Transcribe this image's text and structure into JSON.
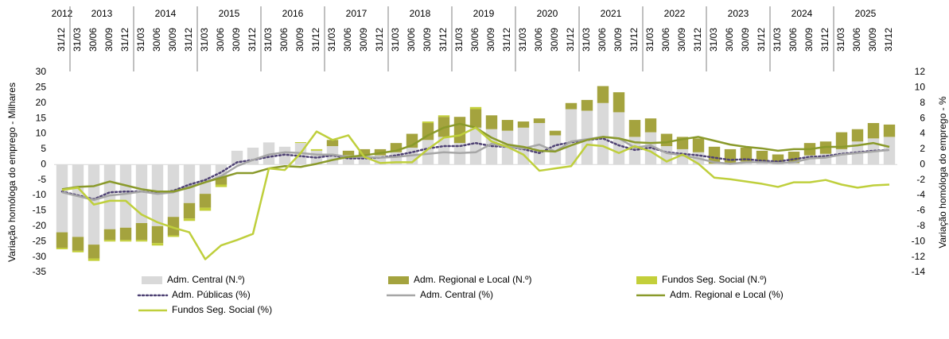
{
  "chart_data": {
    "type": "combo",
    "y_label": "Variação homóloga do emprego - Milhares",
    "y2_label": "Variação homóloga do emprego - %",
    "categories": [
      {
        "year": "2012",
        "label": "31/12"
      },
      {
        "year": "2013",
        "label": "31/03"
      },
      {
        "year": "2013",
        "label": "30/06"
      },
      {
        "year": "2013",
        "label": "30/09"
      },
      {
        "year": "2013",
        "label": "31/12"
      },
      {
        "year": "2014",
        "label": "31/03"
      },
      {
        "year": "2014",
        "label": "30/06"
      },
      {
        "year": "2014",
        "label": "30/09"
      },
      {
        "year": "2014",
        "label": "31/12"
      },
      {
        "year": "2015",
        "label": "31/03"
      },
      {
        "year": "2015",
        "label": "30/06"
      },
      {
        "year": "2015",
        "label": "30/09"
      },
      {
        "year": "2015",
        "label": "31/12"
      },
      {
        "year": "2016",
        "label": "31/03"
      },
      {
        "year": "2016",
        "label": "30/06"
      },
      {
        "year": "2016",
        "label": "30/09"
      },
      {
        "year": "2016",
        "label": "31/12"
      },
      {
        "year": "2017",
        "label": "31/03"
      },
      {
        "year": "2017",
        "label": "30/06"
      },
      {
        "year": "2017",
        "label": "30/09"
      },
      {
        "year": "2017",
        "label": "31/12"
      },
      {
        "year": "2018",
        "label": "31/03"
      },
      {
        "year": "2018",
        "label": "30/06"
      },
      {
        "year": "2018",
        "label": "30/09"
      },
      {
        "year": "2018",
        "label": "31/12"
      },
      {
        "year": "2019",
        "label": "31/03"
      },
      {
        "year": "2019",
        "label": "30/06"
      },
      {
        "year": "2019",
        "label": "30/09"
      },
      {
        "year": "2019",
        "label": "31/12"
      },
      {
        "year": "2020",
        "label": "31/03"
      },
      {
        "year": "2020",
        "label": "30/06"
      },
      {
        "year": "2020",
        "label": "30/09"
      },
      {
        "year": "2020",
        "label": "31/12"
      },
      {
        "year": "2021",
        "label": "31/03"
      },
      {
        "year": "2021",
        "label": "30/06"
      },
      {
        "year": "2021",
        "label": "30/09"
      },
      {
        "year": "2021",
        "label": "31/12"
      },
      {
        "year": "2022",
        "label": "31/03"
      },
      {
        "year": "2022",
        "label": "30/06"
      },
      {
        "year": "2022",
        "label": "30/09"
      },
      {
        "year": "2022",
        "label": "31/12"
      },
      {
        "year": "2023",
        "label": "31/03"
      },
      {
        "year": "2023",
        "label": "30/06"
      },
      {
        "year": "2023",
        "label": "30/09"
      },
      {
        "year": "2023",
        "label": "31/12"
      },
      {
        "year": "2024",
        "label": "31/03"
      },
      {
        "year": "2024",
        "label": "30/06"
      },
      {
        "year": "2024",
        "label": "30/09"
      },
      {
        "year": "2024",
        "label": "31/12"
      },
      {
        "year": "2025",
        "label": "31/03"
      },
      {
        "year": "2025",
        "label": "30/06"
      },
      {
        "year": "2025",
        "label": "30/09"
      },
      {
        "year": "2025",
        "label": "31/12"
      }
    ],
    "ylim": [
      -35,
      30
    ],
    "yticks": [
      -35,
      -30,
      -25,
      -20,
      -15,
      -10,
      -5,
      0,
      5,
      10,
      15,
      20,
      25,
      30
    ],
    "y2lim": [
      -14,
      12
    ],
    "y2ticks": [
      -14,
      -12,
      -10,
      -8,
      -6,
      -4,
      -2,
      0,
      2,
      4,
      6,
      8,
      10,
      12
    ],
    "series": [
      {
        "name": "Adm. Central (N.º)",
        "type": "bar",
        "color": "#d9d9d9",
        "values": [
          -22,
          -23.5,
          -26,
          -21,
          -20.5,
          -19,
          -20,
          -17,
          -12.5,
          -9.5,
          -4,
          4.5,
          5.5,
          7.2,
          5.8,
          7,
          4.5,
          6,
          3,
          3,
          3,
          4,
          5.5,
          8,
          9,
          7,
          12,
          11.5,
          11,
          12,
          13.5,
          9.5,
          18,
          17.5,
          20,
          17,
          9,
          10.5,
          6,
          5,
          4,
          0.3,
          0.5,
          1,
          0.5,
          0.3,
          0.5,
          3,
          3.5,
          5,
          7.5,
          8.5,
          9
        ]
      },
      {
        "name": "Adm. Regional e Local (N.º)",
        "type": "bar",
        "color": "#a4a33e",
        "values": [
          -5,
          -4.5,
          -4.5,
          -3.5,
          -4,
          -5.5,
          -5.5,
          -6,
          -5,
          -4.5,
          -2.5,
          0,
          0,
          0,
          0,
          0,
          0,
          2,
          1.5,
          2,
          2,
          3,
          4.5,
          5.5,
          6.5,
          8.5,
          6,
          4.5,
          3.5,
          2,
          1.5,
          1.5,
          2,
          3.5,
          5.5,
          6.5,
          5.5,
          4.5,
          4,
          4,
          4.5,
          5.5,
          4.5,
          4.5,
          4,
          3,
          3.7,
          4,
          4,
          5.5,
          4,
          5,
          4
        ]
      },
      {
        "name": "Fundos Seg. Social (N.º)",
        "type": "bar",
        "color": "#c3cf3a",
        "values": [
          -0.5,
          -0.5,
          -0.8,
          -0.5,
          -0.5,
          -0.5,
          -0.8,
          -0.5,
          -0.8,
          -1,
          -0.8,
          0,
          0,
          0,
          0,
          0.3,
          0.5,
          0,
          0,
          0,
          0,
          0,
          0,
          0.5,
          0.5,
          0,
          0.7,
          0,
          0,
          0,
          0,
          0,
          0,
          0,
          0,
          0,
          0,
          0,
          0,
          0,
          0,
          0,
          0,
          0,
          0,
          0,
          0,
          0,
          0,
          0,
          0,
          0,
          0
        ]
      },
      {
        "name": "Adm. Públicas (%)",
        "type": "line",
        "axis": "y2",
        "dash": "dotted",
        "color": "#4e4173",
        "values": [
          -3.5,
          -4,
          -4.5,
          -3.6,
          -3.5,
          -3.5,
          -3.7,
          -3.4,
          -2.6,
          -2,
          -1,
          0.3,
          0.6,
          1,
          1.3,
          1.1,
          0.9,
          1.2,
          0.8,
          0.8,
          0.9,
          1.2,
          1.6,
          2.1,
          2.4,
          2.4,
          2.8,
          2.4,
          2.3,
          2,
          1.5,
          2.5,
          2.9,
          3.2,
          3.4,
          2.5,
          1.9,
          2.2,
          1.6,
          1.4,
          1.2,
          0.9,
          0.6,
          0.7,
          0.5,
          0.4,
          0.7,
          1,
          1.1,
          1.4,
          1.6,
          1.8,
          1.9
        ]
      },
      {
        "name": "Adm. Central (%)",
        "type": "line",
        "axis": "y2",
        "color": "#a6a6a6",
        "values": [
          -3.6,
          -4.1,
          -4.6,
          -4,
          -3.8,
          -3.5,
          -3.8,
          -3.6,
          -2.9,
          -2.3,
          -1.5,
          -0.2,
          0.6,
          1.3,
          1.6,
          1.5,
          1.3,
          1.3,
          1,
          1,
          0.9,
          1,
          1.2,
          1.4,
          1.6,
          1.5,
          1.6,
          2.7,
          2.3,
          2.1,
          2.6,
          1.7,
          3,
          3.3,
          3.6,
          3.4,
          2.2,
          2.5,
          1.5,
          1.2,
          0.8,
          0.3,
          0.1,
          0.3,
          0.3,
          0.2,
          0.3,
          0.8,
          0.9,
          1.3,
          1.5,
          1.7,
          1.9
        ]
      },
      {
        "name": "Adm. Regional e Local (%)",
        "type": "line",
        "axis": "y2",
        "color": "#8a9a2b",
        "values": [
          -3.2,
          -2.9,
          -2.8,
          -2.2,
          -2.7,
          -3.2,
          -3.5,
          -3.5,
          -3,
          -2.3,
          -1.7,
          -1.1,
          -1.1,
          -0.5,
          -0.2,
          -0.3,
          0.1,
          0.6,
          1,
          1.2,
          1.5,
          1.8,
          2.5,
          3.8,
          4.8,
          5.3,
          4.8,
          3.5,
          2.6,
          2.3,
          1.8,
          1.7,
          2.5,
          3.2,
          3.6,
          3.4,
          2.9,
          2.8,
          2.9,
          3.3,
          3.6,
          3.1,
          2.6,
          2.3,
          2.1,
          1.8,
          2,
          2,
          2.3,
          2.3,
          2.5,
          2.8,
          2.3
        ]
      },
      {
        "name": "Fundos Seg. Social (%)",
        "type": "line",
        "axis": "y2",
        "color": "#bfcf3c",
        "values": [
          -3.3,
          -3,
          -5.2,
          -4.7,
          -4.7,
          -6.5,
          -7.5,
          -8.2,
          -8.8,
          -12.3,
          -10.5,
          -9.8,
          -9,
          -0.5,
          -0.7,
          1.5,
          4.3,
          3.2,
          3.8,
          1,
          0.2,
          0.3,
          0.3,
          2,
          3.5,
          3.8,
          4.8,
          3,
          2.3,
          1.3,
          -0.8,
          -0.5,
          -0.2,
          2.6,
          2.4,
          1.5,
          2.4,
          1.7,
          0.4,
          1.3,
          0.1,
          -1.7,
          -1.9,
          -2.2,
          -2.5,
          -2.9,
          -2.3,
          -2.3,
          -2,
          -2.6,
          -3,
          -2.7,
          -2.6
        ]
      }
    ]
  }
}
